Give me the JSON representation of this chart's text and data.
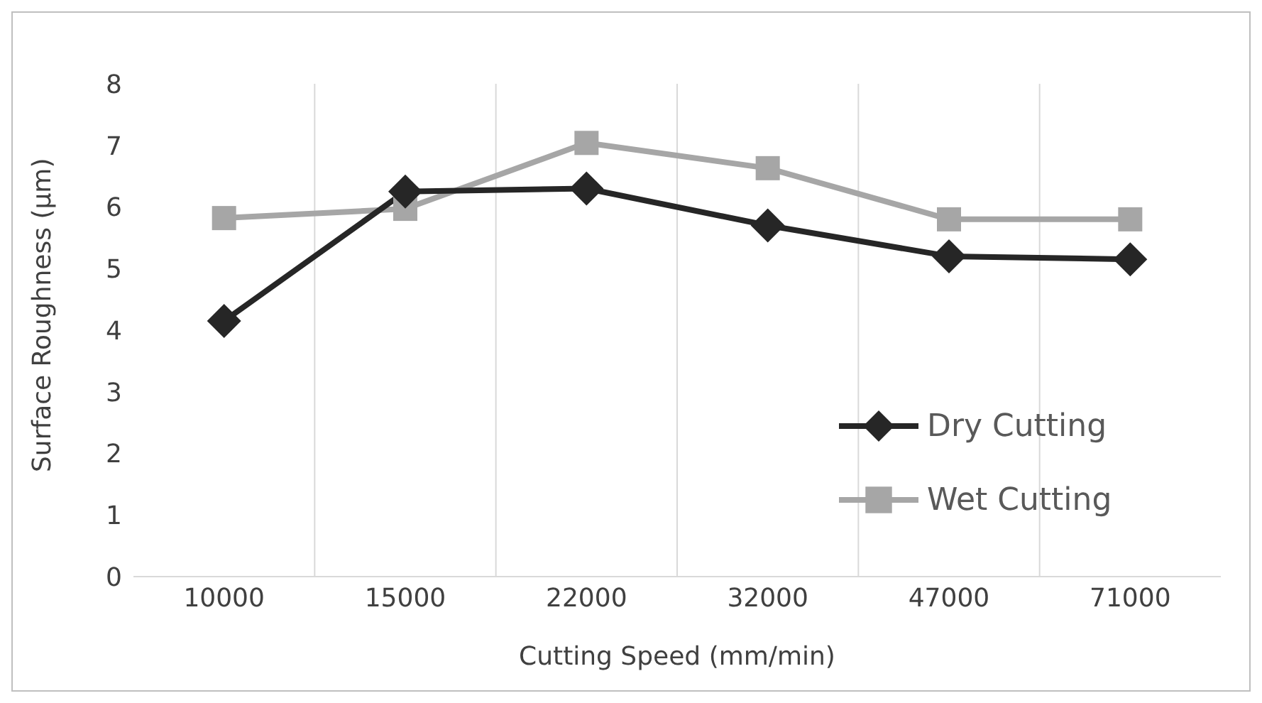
{
  "chart_data": {
    "type": "line",
    "xlabel": "Cutting Speed (mm/min)",
    "ylabel": "Surface Roughness (µm)",
    "categories": [
      "10000",
      "15000",
      "22000",
      "32000",
      "47000",
      "71000"
    ],
    "series": [
      {
        "name": "Dry Cutting",
        "color": "#262626",
        "marker": "diamond",
        "values": [
          4.15,
          6.25,
          6.3,
          5.7,
          5.2,
          5.15
        ]
      },
      {
        "name": "Wet Cutting",
        "color": "#a6a6a6",
        "marker": "square",
        "values": [
          5.82,
          5.97,
          7.04,
          6.63,
          5.8,
          5.8
        ]
      }
    ],
    "ylim": [
      0,
      8
    ],
    "yticks": [
      0,
      1,
      2,
      3,
      4,
      5,
      6,
      7,
      8
    ],
    "grid": "x",
    "legend": "right"
  }
}
